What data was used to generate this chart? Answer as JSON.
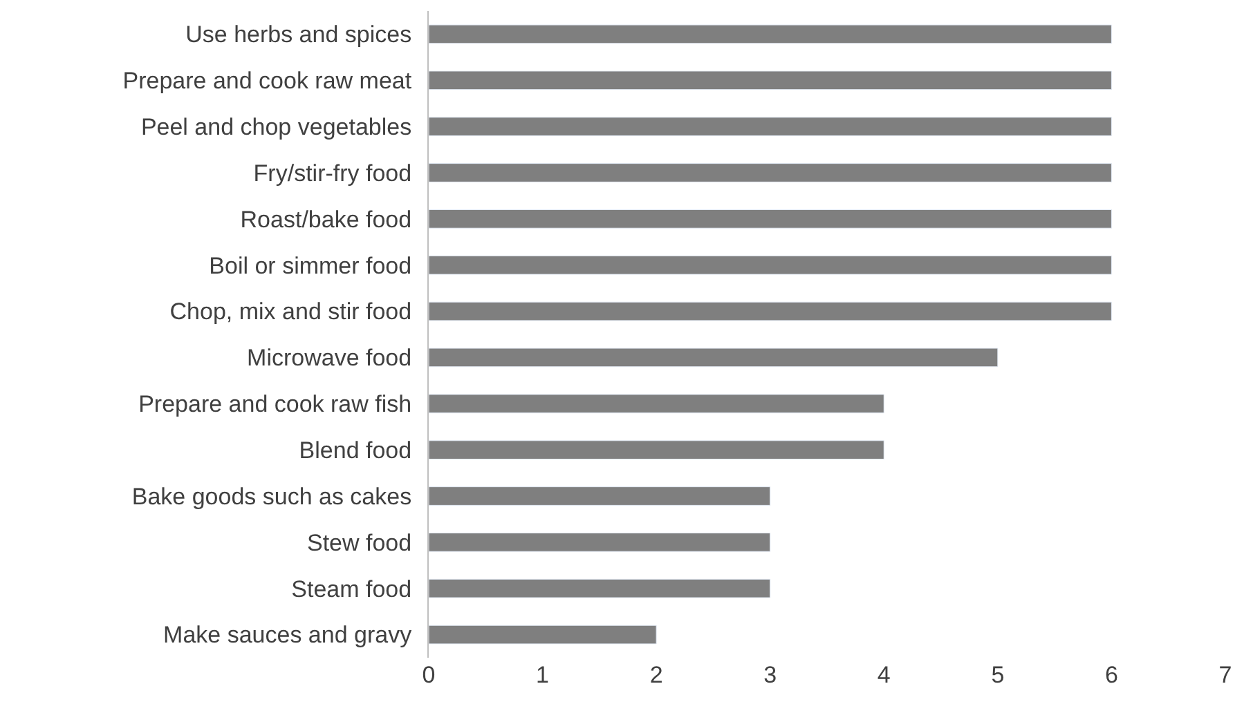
{
  "chart_data": {
    "type": "bar",
    "orientation": "horizontal",
    "categories": [
      "Use herbs and spices",
      "Prepare and cook raw meat",
      "Peel and chop vegetables",
      "Fry/stir-fry food",
      "Roast/bake food",
      "Boil or simmer food",
      "Chop, mix and stir food",
      "Microwave food",
      "Prepare and cook raw fish",
      "Blend food",
      "Bake goods such as cakes",
      "Stew food",
      "Steam food",
      "Make sauces and gravy"
    ],
    "values": [
      6,
      6,
      6,
      6,
      6,
      6,
      6,
      5,
      4,
      4,
      3,
      3,
      3,
      2
    ],
    "color": "#7f7f7f",
    "xlim": [
      0,
      7
    ],
    "xticks": [
      0,
      1,
      2,
      3,
      4,
      5,
      6,
      7
    ]
  }
}
